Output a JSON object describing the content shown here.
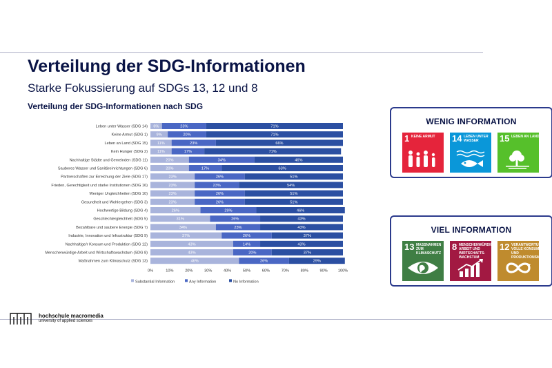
{
  "slide": {
    "title": "Verteilung der SDG-Informationen",
    "subtitle": "Starke Fokussierung auf SDGs 13, 12 und 8"
  },
  "chart_data": {
    "type": "bar",
    "orientation": "horizontal",
    "stacked": true,
    "title": "Verteilung der SDG-Informationen nach SDG",
    "categories": [
      "Leben unter Wasser (SDG 14)",
      "Keine Armut (SDG 1)",
      "Leben an Land (SDG 15)",
      "Kein Hunger (SDG 2)",
      "Nachhaltige Städte und Gemeinden (SDG 11)",
      "Sauberes Wasser und Sanitäreinrichtungen (SDG 6)",
      "Partnerschaften zur Erreichung der Ziele (SDG 17)",
      "Frieden, Gerechtigkeit und starke Institutionen (SDG 16)",
      "Weniger Ungleichheiten (SDG 10)",
      "Gesundheit und Wohlergehen (SDG 3)",
      "Hochwertige Bildung (SDG 4)",
      "Geschlechtergleichheit (SDG 5)",
      "Bezahlbare und saubere Energie (SDG 7)",
      "Industrie, Innovation und Infrastruktur (SDG 9)",
      "Nachhaltige/r Konsum und Produktion (SDG 12)",
      "Menschenwürdige Arbeit und Wirtschaftswachstum (SDG 8)",
      "Maßnahmen zum Klimaschutz (SDG 13)"
    ],
    "series": [
      {
        "name": "Substantial Information",
        "color": "#a9b4dc",
        "values": [
          6,
          9,
          11,
          11,
          20,
          20,
          23,
          23,
          23,
          23,
          26,
          31,
          34,
          37,
          43,
          43,
          46
        ]
      },
      {
        "name": "Any Information",
        "color": "#4a67c4",
        "values": [
          23,
          20,
          23,
          17,
          34,
          17,
          26,
          23,
          26,
          26,
          29,
          26,
          23,
          26,
          14,
          20,
          26
        ]
      },
      {
        "name": "No Information",
        "color": "#2b4fa2",
        "values": [
          71,
          71,
          66,
          71,
          46,
          63,
          51,
          54,
          51,
          51,
          46,
          43,
          43,
          37,
          43,
          37,
          29
        ]
      }
    ],
    "x_ticks": [
      "0%",
      "10%",
      "20%",
      "30%",
      "40%",
      "50%",
      "60%",
      "70%",
      "80%",
      "90%",
      "100%"
    ],
    "xlim": [
      0,
      100
    ],
    "legend_position": "bottom",
    "value_suffix": "%"
  },
  "boxes": {
    "wenig": {
      "title": "WENIG INFORMATION",
      "tiles": [
        {
          "num": "1",
          "label": "KEINE ARMUT",
          "color": "#e5243b",
          "icon": "family-icon"
        },
        {
          "num": "14",
          "label": "LEBEN UNTER WASSER",
          "color": "#0a97d9",
          "icon": "fish-icon"
        },
        {
          "num": "15",
          "label": "LEBEN AN LAND",
          "color": "#56c02b",
          "icon": "tree-icon"
        }
      ]
    },
    "viel": {
      "title": "VIEL INFORMATION",
      "tiles": [
        {
          "num": "13",
          "label": "MASSNAHMEN ZUM KLIMASCHUTZ",
          "color": "#3f7e44",
          "icon": "eye-globe-icon"
        },
        {
          "num": "8",
          "label": "MENSCHENWÜRDIGE ARBEIT UND WIRTSCHAFTS-WACHSTUM",
          "color": "#a21942",
          "icon": "growth-chart-icon"
        },
        {
          "num": "12",
          "label": "VERANTWORTUNGS-VOLLE KONSUM- UND PRODUKTIONSMUSTER",
          "color": "#bf8b2e",
          "icon": "infinity-icon"
        }
      ]
    }
  },
  "footer": {
    "logo_name": "hochschule macromedia",
    "logo_sub": "university of applied sciences"
  }
}
